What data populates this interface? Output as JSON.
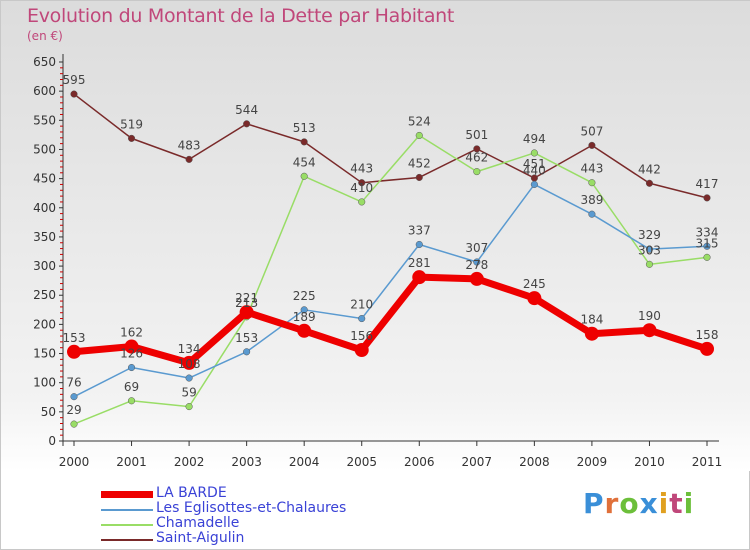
{
  "title": "Evolution du Montant de la Dette par Habitant",
  "unit": "(en €)",
  "brand": "Proxiti",
  "brand_colors": [
    "#3a8fd8",
    "#e0703a",
    "#6cbf3a",
    "#3a8fd8",
    "#e0a020",
    "#c0477a",
    "#6cbf3a"
  ],
  "chart_data": {
    "type": "line",
    "x": [
      "2000",
      "2001",
      "2002",
      "2003",
      "2004",
      "2005",
      "2006",
      "2007",
      "2008",
      "2009",
      "2010",
      "2011"
    ],
    "ylim": [
      0,
      650
    ],
    "yticks": [
      0,
      50,
      100,
      150,
      200,
      250,
      300,
      350,
      400,
      450,
      500,
      550,
      600,
      650
    ],
    "grid": false,
    "legend_placement": "bottom-left",
    "series": [
      {
        "name": "LA BARDE",
        "color": "#ee0000",
        "values": [
          153,
          162,
          134,
          221,
          189,
          156,
          281,
          278,
          245,
          184,
          190,
          158
        ]
      },
      {
        "name": "Les Eglisottes-et-Chalaures",
        "color": "#5a9ad0",
        "values": [
          76,
          126,
          108,
          153,
          225,
          210,
          337,
          307,
          440,
          389,
          329,
          334
        ]
      },
      {
        "name": "Chamadelle",
        "color": "#99dd66",
        "values": [
          29,
          69,
          59,
          213,
          454,
          410,
          524,
          462,
          494,
          443,
          303,
          315
        ]
      },
      {
        "name": "Saint-Aigulin",
        "color": "#7a2a2a",
        "values": [
          595,
          519,
          483,
          544,
          513,
          443,
          452,
          501,
          451,
          507,
          442,
          417
        ]
      }
    ]
  }
}
